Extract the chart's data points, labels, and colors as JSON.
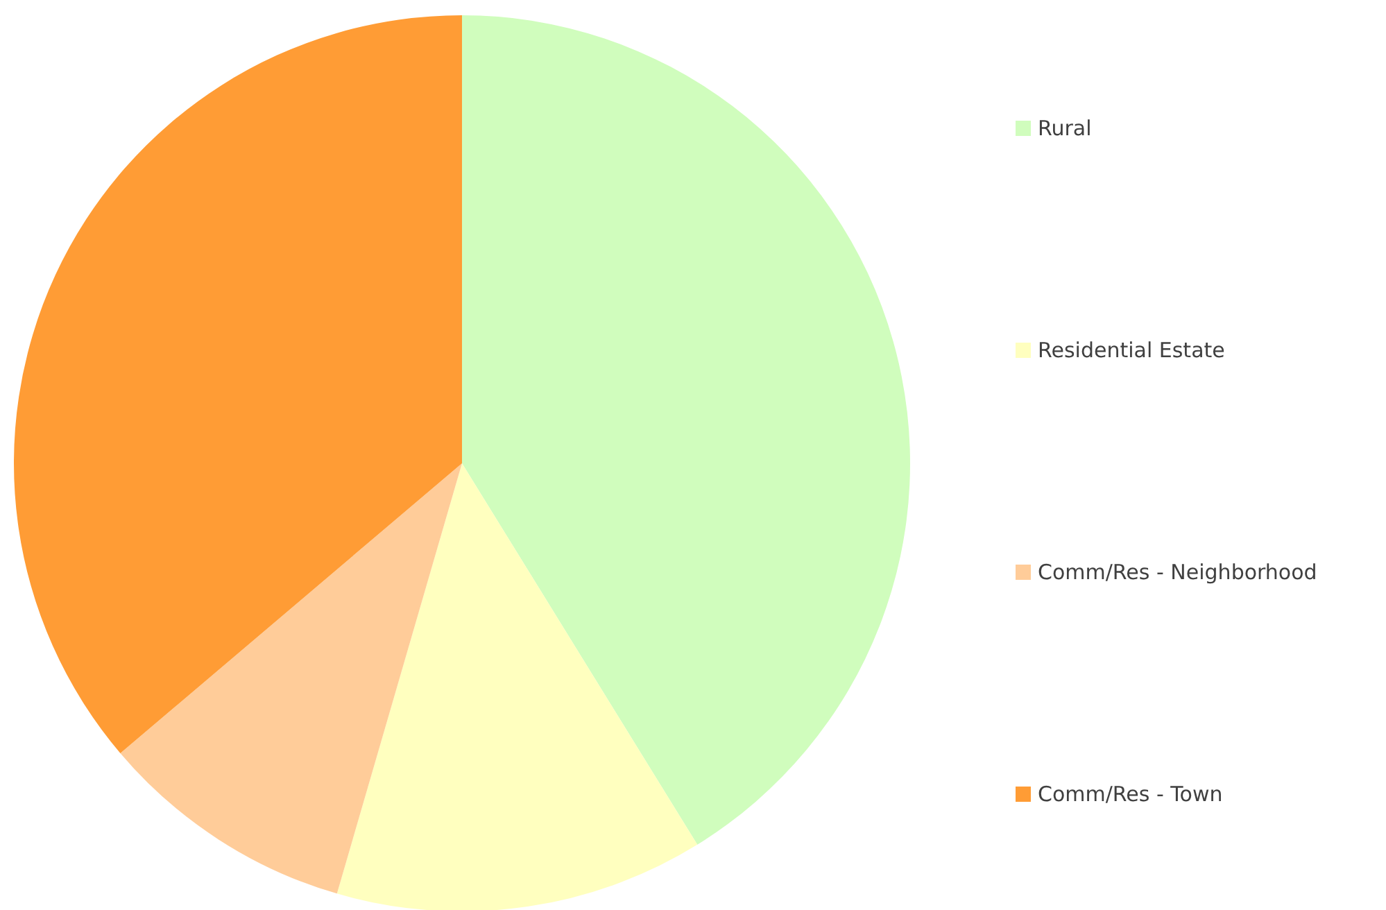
{
  "chart_data": {
    "type": "pie",
    "categories": [
      "Rural",
      "Residential Estate",
      "Comm/Res - Neighborhood",
      "Comm/Res - Town"
    ],
    "values": [
      41.2,
      13.3,
      9.3,
      36.2
    ],
    "colors": [
      "#d0fdbd",
      "#ffffbf",
      "#ffcc99",
      "#ff9c35"
    ],
    "legend": "right"
  }
}
